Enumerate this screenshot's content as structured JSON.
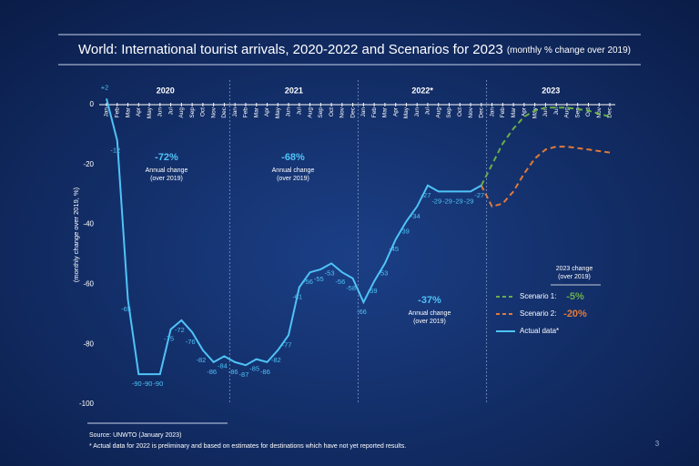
{
  "chart_data": {
    "type": "line",
    "title": "World: International tourist arrivals, 2020-2022 and Scenarios for 2023",
    "subtitle": "(monthly % change over 2019)",
    "y_label": "(monthly change over 2019, %)",
    "years": [
      "2020",
      "2021",
      "2022*",
      "2023"
    ],
    "categories": [
      "Jan",
      "Feb",
      "Mar",
      "Apr",
      "May",
      "Jun",
      "Jul",
      "Aug",
      "Sep",
      "Oct",
      "Nov",
      "Dec",
      "Jan",
      "Feb",
      "Mar",
      "Apr",
      "May",
      "Jun",
      "Jul",
      "Aug",
      "Sep",
      "Oct",
      "Nov",
      "Dec",
      "Jan",
      "Feb",
      "Mar",
      "Apr",
      "May",
      "Jun",
      "Jul",
      "Aug",
      "Sep",
      "Oct",
      "Nov",
      "Dec",
      "Jan",
      "Feb",
      "Mar",
      "Apr",
      "May",
      "Jun",
      "Jul",
      "Aug",
      "Sep",
      "Oct",
      "Nov",
      "Dec"
    ],
    "ylim": [
      -100,
      2
    ],
    "yticks": [
      0,
      -20,
      -40,
      -60,
      -80,
      -100
    ],
    "series": [
      {
        "name": "Scenario 1:",
        "color": "#6aae4a",
        "dash": true,
        "change": "-5%",
        "values": [
          null,
          null,
          null,
          null,
          null,
          null,
          null,
          null,
          null,
          null,
          null,
          null,
          null,
          null,
          null,
          null,
          null,
          null,
          null,
          null,
          null,
          null,
          null,
          null,
          null,
          null,
          null,
          null,
          null,
          null,
          null,
          null,
          null,
          null,
          null,
          -27,
          -20,
          -13,
          -8,
          -4,
          -2,
          -1,
          -1,
          -1,
          -1.5,
          -2,
          -3,
          -4
        ]
      },
      {
        "name": "Scenario 2:",
        "color": "#e07a3a",
        "dash": true,
        "change": "-20%",
        "values": [
          null,
          null,
          null,
          null,
          null,
          null,
          null,
          null,
          null,
          null,
          null,
          null,
          null,
          null,
          null,
          null,
          null,
          null,
          null,
          null,
          null,
          null,
          null,
          null,
          null,
          null,
          null,
          null,
          null,
          null,
          null,
          null,
          null,
          null,
          null,
          -27,
          -34,
          -33,
          -29,
          -23,
          -18,
          -15,
          -14,
          -14,
          -14.5,
          -15,
          -15.5,
          -16
        ]
      },
      {
        "name": "Actual data*",
        "color": "#4fc3f7",
        "dash": false,
        "values": [
          2,
          -12,
          -65,
          -90,
          -90,
          -90,
          -75,
          -72,
          -76,
          -82,
          -86,
          -84,
          -86,
          -87,
          -85,
          -86,
          -82,
          -77,
          -61,
          -56,
          -55,
          -53,
          -56,
          -58,
          -66,
          -59,
          -53,
          -45,
          -39,
          -34,
          -27,
          -29,
          -29,
          -29,
          -29,
          -27,
          null,
          null,
          null,
          null,
          null,
          null,
          null,
          null,
          null,
          null,
          null,
          null
        ],
        "value_labels": [
          "+2",
          "-12",
          "-65",
          "-90",
          "-90",
          "-90",
          "-75",
          "-72",
          "-76",
          "-82",
          "-86",
          "-84",
          "-86",
          "-87",
          "-85",
          "-86",
          "-82",
          "-77",
          "-61",
          "-56",
          "-55",
          "-53",
          "-56",
          "-58",
          "-66",
          "-59",
          "-53",
          "-45",
          "-39",
          "-34",
          "-27",
          "-29",
          "-29",
          "-29",
          "-29",
          "-27",
          null,
          null,
          null,
          null,
          null,
          null,
          null,
          null,
          null,
          null,
          null,
          null
        ]
      }
    ],
    "legend_title": [
      "2023 change",
      "(over 2019)"
    ],
    "annotations": [
      {
        "value": "-72%",
        "label": "Annual change",
        "note": "(over 2019)"
      },
      {
        "value": "-68%",
        "label": "Annual change",
        "note": "(over 2019)"
      },
      {
        "value": "-37%",
        "label": "Annual change",
        "note": "(over 2019)"
      }
    ],
    "source": "Source: UNWTO (January 2023)",
    "footnote": "* Actual data for 2022 is preliminary and based on estimates for destinations which have not yet reported results.",
    "page_number": "3"
  }
}
